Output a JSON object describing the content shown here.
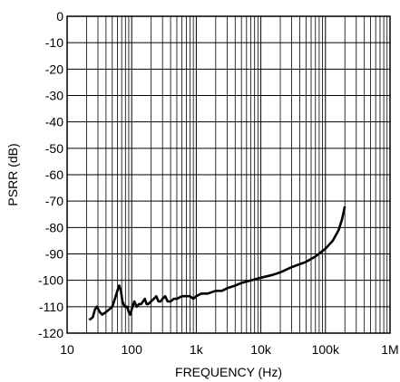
{
  "chart_data": {
    "type": "line",
    "title": "",
    "xlabel": "FREQUENCY (Hz)",
    "ylabel": "PSRR (dB)",
    "x_scale": "log",
    "xlim": [
      10,
      1000000
    ],
    "ylim": [
      -120,
      0
    ],
    "grid": true,
    "x_ticks": [
      10,
      100,
      1000,
      10000,
      100000,
      1000000
    ],
    "x_tick_labels": [
      "10",
      "100",
      "1k",
      "10k",
      "100k",
      "1M"
    ],
    "y_ticks": [
      0,
      -10,
      -20,
      -30,
      -40,
      -50,
      -60,
      -70,
      -80,
      -90,
      -100,
      -110,
      -120
    ],
    "y_tick_labels": [
      "0",
      "-10",
      "-20",
      "-30",
      "-40",
      "-50",
      "-60",
      "-70",
      "-80",
      "-90",
      "-100",
      "-110",
      "-120"
    ],
    "series": [
      {
        "name": "",
        "color": "#000000",
        "points": [
          [
            22,
            -115
          ],
          [
            25,
            -114
          ],
          [
            27,
            -111
          ],
          [
            29,
            -110
          ],
          [
            32,
            -112
          ],
          [
            35,
            -113
          ],
          [
            40,
            -112
          ],
          [
            45,
            -111
          ],
          [
            50,
            -110
          ],
          [
            55,
            -107
          ],
          [
            60,
            -104
          ],
          [
            64,
            -102
          ],
          [
            68,
            -104
          ],
          [
            72,
            -108
          ],
          [
            78,
            -110
          ],
          [
            85,
            -110
          ],
          [
            90,
            -112
          ],
          [
            95,
            -113
          ],
          [
            100,
            -111
          ],
          [
            110,
            -108
          ],
          [
            120,
            -110
          ],
          [
            130,
            -109
          ],
          [
            140,
            -109
          ],
          [
            150,
            -108
          ],
          [
            160,
            -107
          ],
          [
            170,
            -109
          ],
          [
            180,
            -109
          ],
          [
            200,
            -108
          ],
          [
            220,
            -107
          ],
          [
            240,
            -106
          ],
          [
            260,
            -108
          ],
          [
            280,
            -108
          ],
          [
            300,
            -107
          ],
          [
            330,
            -106
          ],
          [
            360,
            -108
          ],
          [
            400,
            -108
          ],
          [
            450,
            -107
          ],
          [
            500,
            -107
          ],
          [
            600,
            -106
          ],
          [
            700,
            -106
          ],
          [
            800,
            -106
          ],
          [
            900,
            -107
          ],
          [
            1000,
            -106
          ],
          [
            1200,
            -105
          ],
          [
            1500,
            -105
          ],
          [
            2000,
            -104
          ],
          [
            2500,
            -104
          ],
          [
            3000,
            -103
          ],
          [
            4000,
            -102
          ],
          [
            5000,
            -101
          ],
          [
            7000,
            -100
          ],
          [
            10000,
            -99
          ],
          [
            15000,
            -98
          ],
          [
            20000,
            -97
          ],
          [
            30000,
            -95
          ],
          [
            50000,
            -93
          ],
          [
            70000,
            -91
          ],
          [
            100000,
            -88
          ],
          [
            130000,
            -85
          ],
          [
            160000,
            -81
          ],
          [
            180000,
            -77
          ],
          [
            200000,
            -72
          ]
        ]
      }
    ]
  }
}
